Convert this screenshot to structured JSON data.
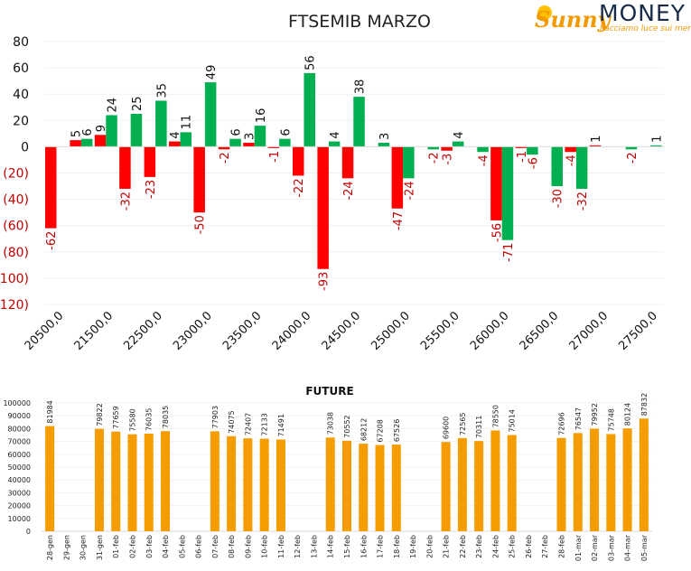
{
  "logo": {
    "sunny": "Sunny",
    "money": "MONEY",
    "tagline": "Facciamo luce sui mercati"
  },
  "colors": {
    "green": "#00b050",
    "red": "#ff0000",
    "orange": "#f59c00",
    "axis_red": "#c00000"
  },
  "chart_data": [
    {
      "type": "bar",
      "title": "FTSEMIB MARZO",
      "ylim": [
        -120,
        80
      ],
      "yticks": [
        "80",
        "60",
        "40",
        "20",
        "0",
        "(20)",
        "(40)",
        "(60)",
        "(80)",
        "(100)",
        "(120)"
      ],
      "xtick_labels": [
        "20500,0",
        "21500,0",
        "22500,0",
        "23000,0",
        "23500,0",
        "24000,0",
        "24500,0",
        "25000,0",
        "25500,0",
        "26000,0",
        "26500,0",
        "27000,0",
        "27500,0"
      ],
      "series": [
        {
          "color": "red",
          "values": [
            -62,
            5,
            9,
            -32,
            -23,
            4,
            -50,
            -2,
            3,
            -1,
            -22,
            -93,
            -24,
            null,
            -47,
            null,
            -3,
            null,
            -56,
            -1,
            null,
            -4,
            1,
            null
          ]
        },
        {
          "color": "green",
          "values": [
            null,
            6,
            24,
            25,
            35,
            11,
            49,
            6,
            16,
            6,
            56,
            4,
            38,
            3,
            -24,
            -2,
            4,
            -4,
            -71,
            -6,
            -30,
            -32,
            null,
            -2,
            1
          ]
        }
      ]
    },
    {
      "type": "bar",
      "title": "FUTURE",
      "ylim": [
        0,
        100000
      ],
      "yticks": [
        "100000",
        "90000",
        "80000",
        "70000",
        "60000",
        "50000",
        "40000",
        "30000",
        "20000",
        "10000",
        "0"
      ],
      "categories": [
        "28-gen",
        "29-gen",
        "30-gen",
        "31-gen",
        "01-feb",
        "02-feb",
        "03-feb",
        "04-feb",
        "05-feb",
        "06-feb",
        "07-feb",
        "08-feb",
        "09-feb",
        "10-feb",
        "11-feb",
        "12-feb",
        "13-feb",
        "14-feb",
        "15-feb",
        "16-feb",
        "17-feb",
        "18-feb",
        "19-feb",
        "20-feb",
        "21-feb",
        "22-feb",
        "23-feb",
        "24-feb",
        "25-feb",
        "26-feb",
        "27-feb",
        "28-feb",
        "01-mar",
        "02-mar",
        "03-mar",
        "04-mar",
        "05-mar"
      ],
      "values": [
        81984,
        null,
        null,
        79822,
        77659,
        75580,
        76035,
        78035,
        null,
        null,
        77903,
        74075,
        72407,
        72133,
        71491,
        null,
        null,
        73038,
        70552,
        68212,
        67208,
        67526,
        null,
        null,
        69600,
        72565,
        70311,
        78550,
        75014,
        null,
        null,
        72696,
        76547,
        79952,
        75748,
        80124,
        87832
      ]
    }
  ]
}
